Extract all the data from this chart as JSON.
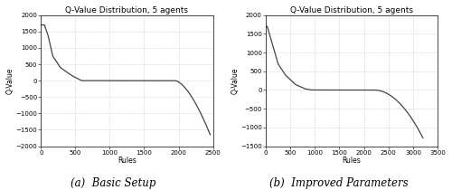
{
  "title": "Q-Value Distribution, 5 agents",
  "xlabel": "Rules",
  "ylabel": "Q-Value",
  "plot_a": {
    "subtitle": "(a)  Basic Setup",
    "xlim": [
      0,
      2500
    ],
    "ylim": [
      -2000,
      2000
    ],
    "xticks": [
      0,
      500,
      1000,
      1500,
      2000,
      2500
    ],
    "yticks": [
      -2000,
      -1500,
      -1000,
      -500,
      0,
      500,
      1000,
      1500,
      2000
    ]
  },
  "plot_b": {
    "subtitle": "(b)  Improved Parameters",
    "xlim": [
      0,
      3500
    ],
    "ylim": [
      -1500,
      2000
    ],
    "xticks": [
      0,
      500,
      1000,
      1500,
      2000,
      2500,
      3000,
      3500
    ],
    "yticks": [
      -1500,
      -1000,
      -500,
      0,
      500,
      1000,
      1500,
      2000
    ]
  },
  "line_color": "#444444",
  "line_width": 0.9,
  "grid_color": "#aaaaaa",
  "bg_color": "#ffffff",
  "title_fontsize": 6.5,
  "label_fontsize": 5.5,
  "tick_fontsize": 5,
  "caption_fontsize": 8.5
}
